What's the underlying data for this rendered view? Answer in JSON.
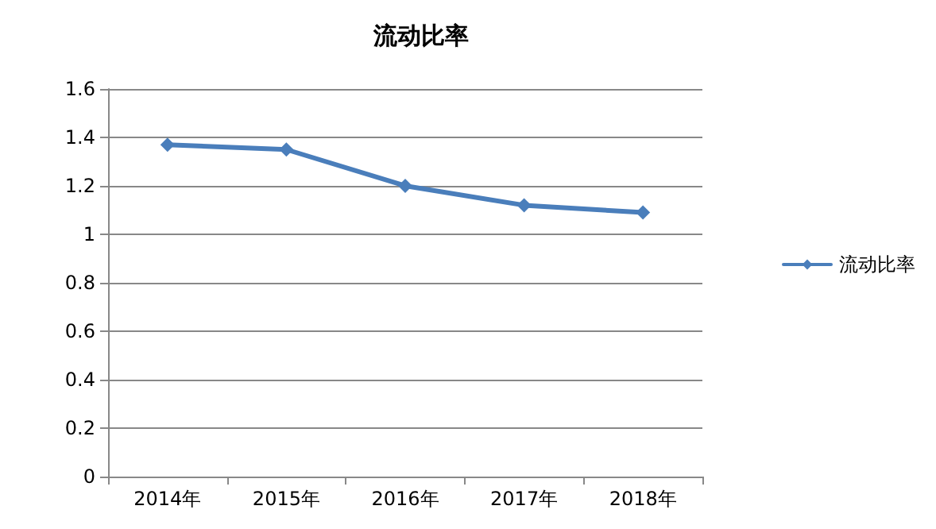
{
  "chart_data": {
    "type": "line",
    "title": "流动比率",
    "categories": [
      "2014年",
      "2015年",
      "2016年",
      "2017年",
      "2018年"
    ],
    "series": [
      {
        "name": "流动比率",
        "color": "#4a7ebb",
        "values": [
          1.37,
          1.35,
          1.2,
          1.12,
          1.09
        ]
      }
    ],
    "ylim": [
      0,
      1.6
    ],
    "yticks": [
      0,
      0.2,
      0.4,
      0.6,
      0.8,
      1,
      1.2,
      1.4,
      1.6
    ],
    "grid": "y",
    "legend": "right",
    "marker": "diamond",
    "line_style": "solid"
  }
}
